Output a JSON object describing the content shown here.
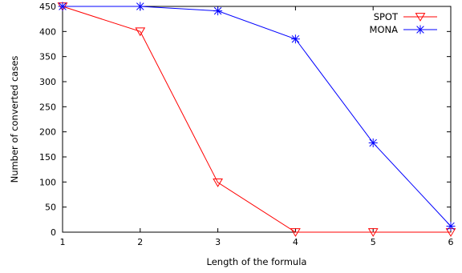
{
  "chart_data": {
    "type": "line",
    "title": "",
    "xlabel": "Length of the formula",
    "ylabel": "Number of converted cases",
    "xlim": [
      1,
      6
    ],
    "ylim": [
      0,
      450
    ],
    "xticks": [
      1,
      2,
      3,
      4,
      5,
      6
    ],
    "yticks": [
      0,
      50,
      100,
      150,
      200,
      250,
      300,
      350,
      400,
      450
    ],
    "grid": false,
    "legend_position": "top-right",
    "x": [
      1,
      2,
      3,
      4,
      5,
      6
    ],
    "series": [
      {
        "name": "SPOT",
        "color": "#ff0000",
        "marker": "triangle-down",
        "values": [
          450,
          400,
          99,
          0,
          0,
          0
        ]
      },
      {
        "name": "MONA",
        "color": "#0000ff",
        "marker": "star",
        "values": [
          450,
          450,
          441,
          385,
          178,
          12
        ]
      }
    ]
  }
}
